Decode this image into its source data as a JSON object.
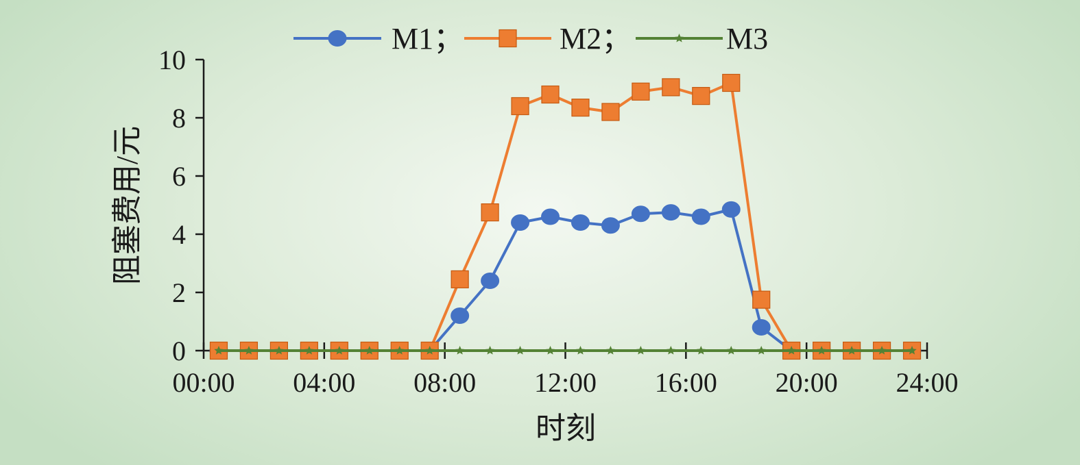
{
  "chart_data": {
    "type": "line",
    "title": "",
    "xlabel": "时刻",
    "ylabel": "阻塞费用/元",
    "ylim": [
      0,
      10
    ],
    "yticks": [
      0,
      2,
      4,
      6,
      8,
      10
    ],
    "xlim": [
      0,
      24
    ],
    "xticks": [
      "00:00",
      "04:00",
      "08:00",
      "12:00",
      "16:00",
      "20:00",
      "24:00"
    ],
    "x": [
      0.5,
      1.5,
      2.5,
      3.5,
      4.5,
      5.5,
      6.5,
      7.5,
      8.5,
      9.5,
      10.5,
      11.5,
      12.5,
      13.5,
      14.5,
      15.5,
      16.5,
      17.5,
      18.5,
      19.5,
      20.5,
      21.5,
      22.5,
      23.5
    ],
    "legend": "top",
    "grid": false,
    "series": [
      {
        "name": "M1",
        "legend_label": "M1；",
        "color": "#4472c4",
        "marker": "circle",
        "values": [
          0,
          0,
          0,
          0,
          0,
          0,
          0,
          0,
          1.2,
          2.4,
          4.4,
          4.6,
          4.4,
          4.3,
          4.7,
          4.75,
          4.6,
          4.85,
          0.8,
          0,
          0,
          0,
          0,
          0
        ]
      },
      {
        "name": "M2",
        "legend_label": "M2；",
        "color": "#ed7d31",
        "marker": "square",
        "values": [
          0,
          0,
          0,
          0,
          0,
          0,
          0,
          0,
          2.45,
          4.75,
          8.4,
          8.8,
          8.35,
          8.2,
          8.9,
          9.05,
          8.75,
          9.2,
          1.75,
          0,
          0,
          0,
          0,
          0
        ]
      },
      {
        "name": "M3",
        "legend_label": "M3",
        "color": "#548235",
        "marker": "star",
        "values": [
          0,
          0,
          0,
          0,
          0,
          0,
          0,
          0,
          0,
          0,
          0,
          0,
          0,
          0,
          0,
          0,
          0,
          0,
          0,
          0,
          0,
          0,
          0,
          0
        ]
      }
    ]
  }
}
